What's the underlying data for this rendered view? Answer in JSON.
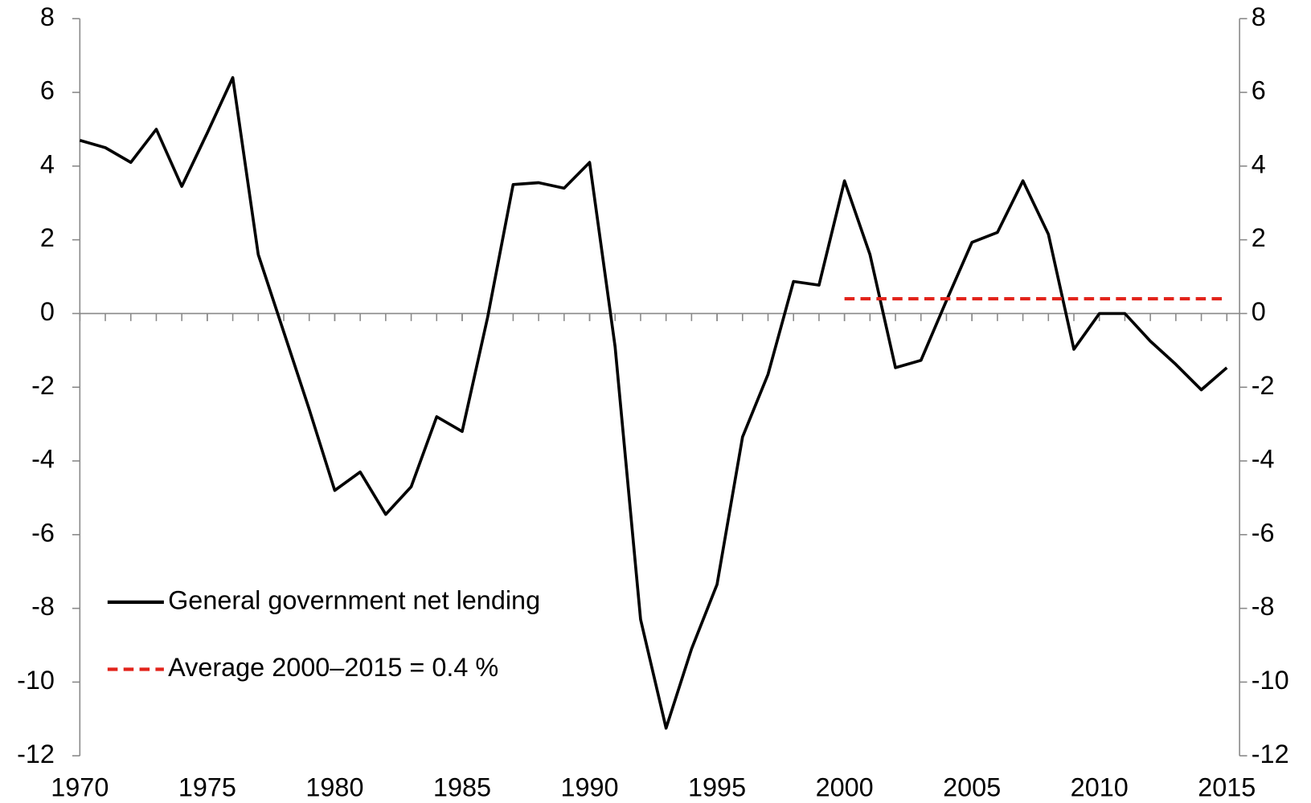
{
  "chart_data": {
    "type": "line",
    "x": [
      1970,
      1971,
      1972,
      1973,
      1974,
      1975,
      1976,
      1977,
      1978,
      1979,
      1980,
      1981,
      1982,
      1983,
      1984,
      1985,
      1986,
      1987,
      1988,
      1989,
      1990,
      1991,
      1992,
      1993,
      1994,
      1995,
      1996,
      1997,
      1998,
      1999,
      2000,
      2001,
      2002,
      2003,
      2004,
      2005,
      2006,
      2007,
      2008,
      2009,
      2010,
      2011,
      2012,
      2013,
      2014,
      2015
    ],
    "series": [
      {
        "name": "General government net lending",
        "color": "#000000",
        "dash": "solid",
        "values": [
          4.7,
          4.5,
          4.1,
          5.0,
          3.45,
          4.9,
          6.4,
          1.6,
          -0.5,
          -2.6,
          -4.8,
          -4.3,
          -5.45,
          -4.7,
          -2.8,
          -3.2,
          -0.1,
          3.5,
          3.55,
          3.4,
          4.1,
          -0.9,
          -8.3,
          -11.25,
          -9.1,
          -7.35,
          -3.35,
          -1.65,
          0.87,
          0.77,
          3.6,
          1.6,
          -1.47,
          -1.27,
          0.35,
          1.93,
          2.2,
          3.6,
          2.15,
          -0.97,
          0.0,
          0.0,
          -0.75,
          -1.38,
          -2.07,
          -1.47
        ]
      },
      {
        "name": "Average 2000–2015 = 0.4 %",
        "color": "#e2231a",
        "dash": "dashed",
        "values": [
          null,
          null,
          null,
          null,
          null,
          null,
          null,
          null,
          null,
          null,
          null,
          null,
          null,
          null,
          null,
          null,
          null,
          null,
          null,
          null,
          null,
          null,
          null,
          null,
          null,
          null,
          null,
          null,
          null,
          null,
          0.4,
          0.4,
          0.4,
          0.4,
          0.4,
          0.4,
          0.4,
          0.4,
          0.4,
          0.4,
          0.4,
          0.4,
          0.4,
          0.4,
          0.4,
          0.4
        ]
      }
    ],
    "xlim": [
      1970,
      2015.5
    ],
    "xticks": [
      1970,
      1975,
      1980,
      1985,
      1990,
      1995,
      2000,
      2005,
      2010,
      2015
    ],
    "ylim": [
      -12,
      8
    ],
    "yticks": [
      -12,
      -10,
      -8,
      -6,
      -4,
      -2,
      0,
      2,
      4,
      6,
      8
    ],
    "y2lim": [
      -12,
      8
    ],
    "y2ticks": [
      -12,
      -10,
      -8,
      -6,
      -4,
      -2,
      0,
      2,
      4,
      6,
      8
    ],
    "grid": false,
    "legend": "lower left"
  }
}
